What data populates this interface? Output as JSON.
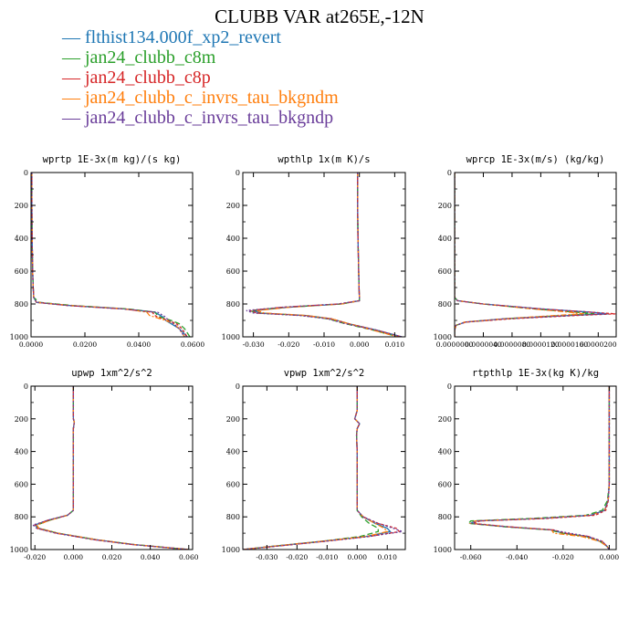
{
  "title": "CLUBB VAR at265E,-12N",
  "legend": [
    {
      "name": "flthist134.000f_xp2_revert",
      "color": "#1f77b4"
    },
    {
      "name": "jan24_clubb_c8m",
      "color": "#2ca02c"
    },
    {
      "name": "jan24_clubb_c8p",
      "color": "#d62728"
    },
    {
      "name": "jan24_clubb_c_invrs_tau_bkgndm",
      "color": "#ff7f0e"
    },
    {
      "name": "jan24_clubb_c_invrs_tau_bkgndp",
      "color": "#6a3d9a"
    }
  ],
  "chart_data": [
    {
      "type": "line",
      "title": "wprtp  1E-3x(m kg)/(s kg)",
      "xlim": [
        0,
        0.06
      ],
      "xticks": [
        "0.0000",
        "0.0200",
        "0.0400",
        "0.0600"
      ],
      "xtick_values": [
        0,
        0.02,
        0.04,
        0.06
      ],
      "ylim": [
        1000,
        0
      ],
      "yticks": [
        "0",
        "200",
        "400",
        "600",
        "800",
        "1000"
      ],
      "y": [
        0,
        200,
        400,
        600,
        700,
        760,
        790,
        810,
        830,
        850,
        870,
        880,
        900,
        920,
        950,
        1000
      ],
      "series": [
        {
          "values": [
            0.0003,
            0.0003,
            0.0004,
            0.0006,
            0.0008,
            0.001,
            0.002,
            0.015,
            0.035,
            0.046,
            0.048,
            0.049,
            0.05,
            0.052,
            0.055,
            0.058
          ]
        },
        {
          "values": [
            0.0003,
            0.0003,
            0.0004,
            0.0006,
            0.0008,
            0.001,
            0.003,
            0.016,
            0.036,
            0.046,
            0.047,
            0.048,
            0.052,
            0.055,
            0.057,
            0.059
          ]
        },
        {
          "values": [
            0.0003,
            0.0003,
            0.0004,
            0.0006,
            0.0008,
            0.001,
            0.002,
            0.014,
            0.034,
            0.045,
            0.046,
            0.047,
            0.051,
            0.054,
            0.056,
            0.058
          ]
        },
        {
          "values": [
            0.0003,
            0.0003,
            0.0004,
            0.0006,
            0.0008,
            0.001,
            0.002,
            0.015,
            0.035,
            0.043,
            0.044,
            0.046,
            0.05,
            0.053,
            0.055,
            0.057
          ]
        },
        {
          "values": [
            0.0003,
            0.0003,
            0.0004,
            0.0006,
            0.0008,
            0.001,
            0.002,
            0.014,
            0.034,
            0.047,
            0.049,
            0.05,
            0.051,
            0.053,
            0.055,
            0.057
          ]
        }
      ]
    },
    {
      "type": "line",
      "title": "wpthlp  1x(m K)/s",
      "xlim": [
        -0.033,
        0.013
      ],
      "xticks": [
        "-0.030",
        "-0.020",
        "-0.010",
        "0.000",
        "0.010"
      ],
      "xtick_values": [
        -0.03,
        -0.02,
        -0.01,
        0,
        0.01
      ],
      "ylim": [
        1000,
        0
      ],
      "yticks": [
        "0",
        "200",
        "400",
        "600",
        "800",
        "1000"
      ],
      "y": [
        0,
        200,
        400,
        600,
        700,
        760,
        780,
        800,
        820,
        840,
        855,
        870,
        890,
        920,
        960,
        1000
      ],
      "series": [
        {
          "values": [
            -0.0005,
            -0.0005,
            -0.0004,
            -0.0002,
            -0.0001,
            0.0,
            0.0,
            -0.005,
            -0.02,
            -0.03,
            -0.028,
            -0.015,
            -0.008,
            -0.003,
            0.005,
            0.012
          ]
        },
        {
          "values": [
            -0.0005,
            -0.0005,
            -0.0004,
            -0.0002,
            -0.0001,
            0.0,
            0.0,
            -0.005,
            -0.021,
            -0.031,
            -0.029,
            -0.016,
            -0.009,
            -0.004,
            0.004,
            0.011
          ]
        },
        {
          "values": [
            -0.0005,
            -0.0005,
            -0.0004,
            -0.0002,
            -0.0001,
            0.0,
            0.0,
            -0.006,
            -0.022,
            -0.031,
            -0.029,
            -0.016,
            -0.008,
            -0.003,
            0.005,
            0.012
          ]
        },
        {
          "values": [
            -0.0005,
            -0.0005,
            -0.0004,
            -0.0002,
            -0.0001,
            0.0,
            0.0,
            -0.005,
            -0.02,
            -0.029,
            -0.027,
            -0.015,
            -0.008,
            -0.003,
            0.004,
            0.011
          ]
        },
        {
          "values": [
            -0.0005,
            -0.0005,
            -0.0004,
            -0.0002,
            -0.0001,
            0.0,
            0.0,
            -0.006,
            -0.022,
            -0.032,
            -0.03,
            -0.017,
            -0.009,
            -0.004,
            0.005,
            0.012
          ]
        }
      ]
    },
    {
      "type": "line",
      "title": "wprcp  1E-3x(m/s) (kg/kg)",
      "xlim": [
        0,
        2.25e-05
      ],
      "xticks": [
        "0.0000000",
        "0.0000040",
        "0.0000080",
        "0.0000120",
        "0.0000160",
        "0.0000200"
      ],
      "xtick_values": [
        0,
        4e-06,
        8e-06,
        1.2e-05,
        1.6e-05,
        2e-05
      ],
      "ylim": [
        1000,
        0
      ],
      "yticks": [
        "0",
        "200",
        "400",
        "600",
        "800",
        "1000"
      ],
      "y": [
        0,
        200,
        400,
        600,
        700,
        760,
        780,
        800,
        830,
        850,
        860,
        870,
        890,
        910,
        930,
        960,
        1000
      ],
      "series": [
        {
          "values": [
            0,
            0,
            0,
            0,
            0,
            0,
            4e-07,
            4e-06,
            1.2e-05,
            1.9e-05,
            2.15e-05,
            1.6e-05,
            7e-06,
            1.5e-06,
            2e-07,
            0,
            0
          ]
        },
        {
          "values": [
            0,
            0,
            0,
            0,
            0,
            0,
            4e-07,
            4e-06,
            1.1e-05,
            1.7e-05,
            1.95e-05,
            1.5e-05,
            7e-06,
            1.5e-06,
            2e-07,
            0,
            0
          ]
        },
        {
          "values": [
            0,
            0,
            0,
            0,
            0,
            0,
            4e-07,
            4e-06,
            1.2e-05,
            1.9e-05,
            2.24e-05,
            1.7e-05,
            8e-06,
            1.6e-06,
            2e-07,
            0,
            0
          ]
        },
        {
          "values": [
            0,
            0,
            0,
            0,
            0,
            0,
            4e-07,
            4e-06,
            1.1e-05,
            1.6e-05,
            1.8e-05,
            1.4e-05,
            7e-06,
            1.4e-06,
            2e-07,
            0,
            0
          ]
        },
        {
          "values": [
            0,
            0,
            0,
            0,
            0,
            0,
            4e-07,
            4e-06,
            1.2e-05,
            1.9e-05,
            2.1e-05,
            1.6e-05,
            7e-06,
            1.5e-06,
            2e-07,
            0,
            0
          ]
        }
      ]
    },
    {
      "type": "line",
      "title": "upwp  1xm^2/s^2",
      "xlim": [
        -0.022,
        0.062
      ],
      "xticks": [
        "-0.020",
        "0.000",
        "0.020",
        "0.040",
        "0.060"
      ],
      "xtick_values": [
        -0.02,
        0,
        0.02,
        0.04,
        0.06
      ],
      "ylim": [
        1000,
        0
      ],
      "yticks": [
        "0",
        "200",
        "400",
        "600",
        "800",
        "1000"
      ],
      "y": [
        0,
        200,
        220,
        260,
        400,
        600,
        760,
        790,
        820,
        850,
        870,
        900,
        940,
        970,
        1000
      ],
      "series": [
        {
          "values": [
            0.0,
            0.0,
            0.0005,
            0.0,
            0.0,
            0.0,
            0.0,
            -0.003,
            -0.013,
            -0.02,
            -0.018,
            -0.008,
            0.012,
            0.032,
            0.06
          ]
        },
        {
          "values": [
            0.0,
            0.0,
            0.0005,
            0.0,
            0.0,
            0.0,
            0.0,
            -0.003,
            -0.012,
            -0.019,
            -0.018,
            -0.008,
            0.012,
            0.032,
            0.06
          ]
        },
        {
          "values": [
            0.0,
            0.0,
            0.0005,
            0.0,
            0.0,
            0.0,
            0.0,
            -0.003,
            -0.013,
            -0.02,
            -0.019,
            -0.009,
            0.011,
            0.031,
            0.06
          ]
        },
        {
          "values": [
            0.0,
            0.0,
            0.0005,
            0.0,
            0.0,
            0.0,
            0.0,
            -0.003,
            -0.012,
            -0.019,
            -0.018,
            -0.008,
            0.012,
            0.032,
            0.06
          ]
        },
        {
          "values": [
            0.0,
            0.0,
            0.0005,
            0.0,
            0.0,
            0.0,
            0.0,
            -0.003,
            -0.013,
            -0.021,
            -0.019,
            -0.009,
            0.011,
            0.031,
            0.06
          ]
        }
      ]
    },
    {
      "type": "line",
      "title": "vpwp  1xm^2/s^2",
      "xlim": [
        -0.038,
        0.016
      ],
      "xticks": [
        "-0.030",
        "-0.020",
        "-0.010",
        "0.000",
        "0.010"
      ],
      "xtick_values": [
        -0.03,
        -0.02,
        -0.01,
        0,
        0.01
      ],
      "ylim": [
        1000,
        0
      ],
      "yticks": [
        "0",
        "200",
        "400",
        "600",
        "800",
        "1000"
      ],
      "y": [
        0,
        150,
        200,
        230,
        260,
        300,
        400,
        600,
        760,
        800,
        840,
        870,
        890,
        920,
        950,
        980,
        1000
      ],
      "series": [
        {
          "values": [
            0.0,
            0.0,
            -0.0008,
            0.0008,
            0.0,
            -0.0002,
            0.0,
            0.0,
            0.0,
            0.002,
            0.006,
            0.01,
            0.011,
            0.003,
            -0.012,
            -0.028,
            -0.038
          ]
        },
        {
          "values": [
            0.0,
            0.0,
            -0.0008,
            0.0008,
            0.0,
            -0.0002,
            0.0,
            0.0,
            0.0,
            0.0015,
            0.004,
            0.007,
            0.007,
            0.001,
            -0.012,
            -0.028,
            -0.038
          ]
        },
        {
          "values": [
            0.0,
            0.0,
            -0.0008,
            0.0008,
            0.0,
            -0.0002,
            0.0,
            0.0,
            0.0,
            0.002,
            0.007,
            0.013,
            0.014,
            0.004,
            -0.011,
            -0.027,
            -0.038
          ]
        },
        {
          "values": [
            0.0,
            0.0,
            -0.0008,
            0.0008,
            0.0,
            -0.0002,
            0.0,
            0.0,
            0.0,
            0.002,
            0.006,
            0.009,
            0.01,
            0.003,
            -0.012,
            -0.028,
            -0.038
          ]
        },
        {
          "values": [
            0.0,
            0.0,
            -0.0008,
            0.0008,
            0.0,
            -0.0002,
            0.0,
            0.0,
            0.0,
            0.002,
            0.007,
            0.012,
            0.015,
            0.004,
            -0.011,
            -0.027,
            -0.038
          ]
        }
      ]
    },
    {
      "type": "line",
      "title": "rtpthlp  1E-3x(kg K)/kg",
      "xlim": [
        -0.067,
        0.003
      ],
      "xticks": [
        "-0.060",
        "-0.040",
        "-0.020",
        "0.000"
      ],
      "xtick_values": [
        -0.06,
        -0.04,
        -0.02,
        0
      ],
      "ylim": [
        1000,
        0
      ],
      "yticks": [
        "0",
        "200",
        "400",
        "600",
        "800",
        "1000"
      ],
      "y": [
        0,
        200,
        400,
        600,
        700,
        760,
        790,
        810,
        825,
        840,
        860,
        880,
        900,
        920,
        950,
        980,
        1000
      ],
      "series": [
        {
          "values": [
            0.0,
            0.0,
            0.0,
            0.0,
            -0.0005,
            -0.002,
            -0.008,
            -0.03,
            -0.058,
            -0.06,
            -0.045,
            -0.025,
            -0.02,
            -0.01,
            -0.004,
            -0.001,
            0.0
          ]
        },
        {
          "values": [
            0.0,
            0.0,
            0.0,
            0.0,
            -0.0008,
            -0.003,
            -0.01,
            -0.034,
            -0.06,
            -0.061,
            -0.046,
            -0.026,
            -0.02,
            -0.01,
            -0.004,
            -0.001,
            0.0
          ]
        },
        {
          "values": [
            0.0,
            0.0,
            0.0,
            0.0,
            -0.0004,
            -0.0015,
            -0.006,
            -0.027,
            -0.056,
            -0.059,
            -0.044,
            -0.024,
            -0.019,
            -0.009,
            -0.003,
            -0.001,
            0.0
          ]
        },
        {
          "values": [
            0.0,
            0.0,
            0.0,
            0.0,
            -0.0005,
            -0.002,
            -0.008,
            -0.03,
            -0.058,
            -0.06,
            -0.045,
            -0.025,
            -0.024,
            -0.012,
            -0.004,
            -0.001,
            0.0
          ]
        },
        {
          "values": [
            0.0,
            0.0,
            0.0,
            0.0,
            -0.0005,
            -0.002,
            -0.008,
            -0.03,
            -0.057,
            -0.06,
            -0.045,
            -0.025,
            -0.017,
            -0.009,
            -0.003,
            -0.001,
            0.0
          ]
        }
      ]
    }
  ]
}
